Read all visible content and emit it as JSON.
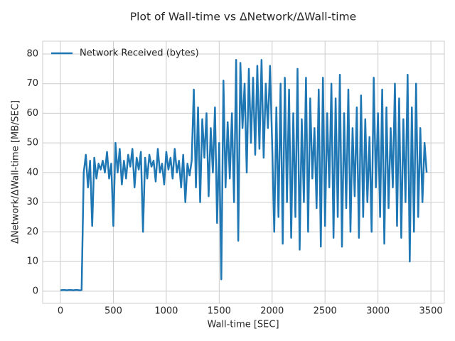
{
  "chart_data": {
    "type": "line",
    "title": "Plot of Wall-time vs ΔNetwork/ΔWall-time",
    "x_label": "Wall-time [SEC]",
    "y_label": "ΔNetwork/ΔWall-time [MB/SEC]",
    "legend_loc": "upper left",
    "grid": true,
    "xlim": [
      -168,
      3627
    ],
    "ylim": [
      -4.1,
      84.3
    ],
    "xticks": [
      0,
      500,
      1000,
      1500,
      2000,
      2500,
      3000,
      3500
    ],
    "yticks": [
      0,
      10,
      20,
      30,
      40,
      50,
      60,
      70,
      80
    ],
    "x": [
      0,
      20,
      40,
      60,
      80,
      100,
      120,
      140,
      160,
      180,
      200,
      220,
      240,
      260,
      280,
      300,
      320,
      340,
      360,
      380,
      400,
      420,
      440,
      460,
      480,
      500,
      520,
      540,
      560,
      580,
      600,
      620,
      640,
      660,
      680,
      700,
      720,
      740,
      760,
      780,
      800,
      820,
      840,
      860,
      880,
      900,
      920,
      940,
      960,
      980,
      1000,
      1020,
      1040,
      1060,
      1080,
      1100,
      1120,
      1140,
      1160,
      1180,
      1200,
      1220,
      1240,
      1260,
      1280,
      1300,
      1320,
      1340,
      1360,
      1380,
      1400,
      1420,
      1440,
      1460,
      1480,
      1500,
      1520,
      1540,
      1560,
      1580,
      1600,
      1620,
      1640,
      1660,
      1680,
      1700,
      1720,
      1740,
      1760,
      1780,
      1800,
      1820,
      1840,
      1860,
      1880,
      1900,
      1920,
      1940,
      1960,
      1980,
      2000,
      2020,
      2040,
      2060,
      2080,
      2100,
      2120,
      2140,
      2160,
      2180,
      2200,
      2220,
      2240,
      2260,
      2280,
      2300,
      2320,
      2340,
      2360,
      2380,
      2400,
      2420,
      2440,
      2460,
      2480,
      2500,
      2520,
      2540,
      2560,
      2580,
      2600,
      2620,
      2640,
      2660,
      2680,
      2700,
      2720,
      2740,
      2760,
      2780,
      2800,
      2820,
      2840,
      2860,
      2880,
      2900,
      2920,
      2940,
      2960,
      2980,
      3000,
      3020,
      3040,
      3060,
      3080,
      3100,
      3120,
      3140,
      3160,
      3180,
      3200,
      3220,
      3240,
      3260,
      3280,
      3300,
      3320,
      3340,
      3360,
      3380,
      3400,
      3420,
      3440,
      3460
    ],
    "series": [
      {
        "name": "Network Received (bytes)",
        "color": "#1f77b4",
        "values": [
          0.3,
          0.4,
          0.4,
          0.3,
          0.4,
          0.4,
          0.3,
          0.4,
          0.4,
          0.3,
          0.4,
          40,
          46,
          35,
          44,
          22,
          45,
          38,
          43,
          41,
          44,
          40,
          47,
          38,
          43,
          22,
          50,
          40,
          48,
          36,
          44,
          38,
          46,
          42,
          48,
          35,
          45,
          41,
          47,
          20,
          45,
          38,
          46,
          42,
          44,
          37,
          48,
          40,
          43,
          36,
          47,
          41,
          45,
          38,
          48,
          40,
          44,
          35,
          46,
          30,
          43,
          39,
          44,
          68,
          35,
          62,
          30,
          58,
          45,
          60,
          32,
          55,
          40,
          62,
          23,
          50,
          4,
          71,
          35,
          57,
          38,
          60,
          30,
          78,
          17,
          77,
          55,
          70,
          40,
          75,
          50,
          72,
          46,
          76,
          48,
          78,
          45,
          70,
          55,
          76,
          50,
          20,
          62,
          25,
          70,
          16,
          72,
          30,
          68,
          18,
          60,
          25,
          75,
          14,
          58,
          30,
          72,
          20,
          65,
          38,
          55,
          28,
          68,
          15,
          72,
          22,
          60,
          35,
          70,
          18,
          65,
          25,
          73,
          15,
          60,
          28,
          68,
          20,
          55,
          32,
          62,
          18,
          66,
          25,
          58,
          30,
          52,
          20,
          72,
          35,
          60,
          25,
          68,
          16,
          62,
          28,
          55,
          35,
          70,
          22,
          65,
          18,
          58,
          30,
          73,
          10,
          62,
          20,
          70,
          25,
          55,
          30,
          50,
          40
        ]
      }
    ]
  }
}
